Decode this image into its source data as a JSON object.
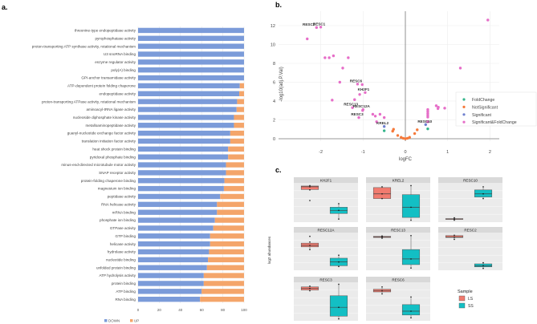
{
  "panel_labels": {
    "a": "a.",
    "b": "b.",
    "c": "c."
  },
  "colors": {
    "down": "#7b9bd9",
    "up": "#f4a56a",
    "fold_change": "#34b58b",
    "not_significant": "#f5793a",
    "significant": "#6f80cf",
    "sig_fold": "#e66ec8",
    "ls": "#f17b6f",
    "ss": "#13bfc4",
    "panel_bg": "#ebebeb",
    "strip_bg": "#d9d9d9"
  },
  "chart_data": [
    {
      "type": "bar",
      "stacked": true,
      "orientation": "horizontal",
      "categories": [
        "threonine-type endopeptidase activity",
        "pyrophosphatase activity",
        "proton-transporting ATP synthase activity, rotational mechanism",
        "U3 snoRNA binding",
        "enzyme regulator activity",
        "poly(A) binding",
        "GPI-anchor transamidase activity",
        "ATP-dependent protein folding chaperone",
        "endopeptidase activity",
        "proton-transporting ATPase activity, rotational mechanism",
        "aminoacyl-tRNA ligase activity",
        "nucleoside diphosphate kinase activity",
        "metalloaminopeptidase activity",
        "guanyl-nucleotide exchange factor activity",
        "translation initiation factor activity",
        "heat shock protein binding",
        "pyridoxal phosphate binding",
        "minus-end-directed microtubule motor activity",
        "SNAP receptor activity",
        "protein-folding chaperone binding",
        "magnesium ion binding",
        "peptidase activity",
        "RNA helicase activity",
        "mRNA binding",
        "phosphate ion binding",
        "GTPase activity",
        "GTP binding",
        "helicase activity",
        "hydrolase activity",
        "nucleotide binding",
        "unfolded protein binding",
        "ATP hydrolysis activity",
        "protein binding",
        "ATP binding",
        "RNA binding"
      ],
      "series": [
        {
          "name": "DOWN",
          "values": [
            100,
            100,
            100,
            100,
            100,
            100,
            100,
            96,
            95.5,
            93.5,
            93,
            90.5,
            90.5,
            87,
            87,
            85,
            85,
            83,
            83,
            81.5,
            81,
            77.5,
            74.5,
            74.5,
            72.5,
            71,
            68,
            68,
            67,
            66,
            65,
            62,
            62,
            60,
            58.5
          ]
        },
        {
          "name": "UP",
          "values": [
            0,
            0,
            0,
            0,
            0,
            0,
            0,
            4,
            4.5,
            6.5,
            7,
            9.5,
            9.5,
            13,
            13,
            15,
            15,
            17,
            17,
            18.5,
            19,
            22.5,
            25.5,
            25.5,
            27.5,
            29,
            32,
            32,
            33,
            34,
            35,
            38,
            38,
            40,
            41.5
          ]
        }
      ],
      "xlim": [
        0,
        100
      ],
      "xticks": [
        "0",
        "20",
        "40",
        "60",
        "80",
        "100"
      ],
      "legend": "bottom",
      "grid": true
    },
    {
      "type": "scatter",
      "xlabel": "logFC",
      "ylabel": "-log10(adj.P.Val)",
      "xlim": [
        -2.5,
        2.2
      ],
      "ylim": [
        -0.2,
        13.2
      ],
      "xticks": [
        "-2",
        "-1",
        "0",
        "1",
        "2"
      ],
      "yticks": [
        "0",
        "2",
        "4",
        "6",
        "8",
        "10",
        "12"
      ],
      "legend": "right",
      "grid": true,
      "groups": [
        "FoldChange",
        "NotSignificant",
        "Significant",
        "Significant&FoldChange"
      ],
      "points": [
        {
          "x": -2.1,
          "y": 11.8,
          "g": "Significant&FoldChange",
          "label": "RESC2"
        },
        {
          "x": -2.0,
          "y": 11.85,
          "g": "Significant&FoldChange",
          "label": "RESC1"
        },
        {
          "x": -2.32,
          "y": 10.6,
          "g": "Significant&FoldChange"
        },
        {
          "x": -1.9,
          "y": 8.6,
          "g": "Significant&FoldChange"
        },
        {
          "x": -1.8,
          "y": 8.6,
          "g": "Significant&FoldChange"
        },
        {
          "x": -1.7,
          "y": 8.8,
          "g": "Significant&FoldChange"
        },
        {
          "x": -1.35,
          "y": 8.6,
          "g": "Significant&FoldChange"
        },
        {
          "x": -1.48,
          "y": 7.5,
          "g": "Significant&FoldChange"
        },
        {
          "x": -1.55,
          "y": 6.0,
          "g": "Significant&FoldChange"
        },
        {
          "x": -1.13,
          "y": 5.8,
          "g": "Significant&FoldChange",
          "label": "RESC6"
        },
        {
          "x": -1.02,
          "y": 5.75,
          "g": "Significant&FoldChange"
        },
        {
          "x": -0.95,
          "y": 4.9,
          "g": "Significant&FoldChange",
          "label": "KH2F1"
        },
        {
          "x": -1.08,
          "y": 4.7,
          "g": "Significant&FoldChange"
        },
        {
          "x": -1.73,
          "y": 4.1,
          "g": "Significant&FoldChange"
        },
        {
          "x": -1.2,
          "y": 4.15,
          "g": "Significant&FoldChange"
        },
        {
          "x": -1.25,
          "y": 3.3,
          "g": "Significant&FoldChange",
          "label": "RESC13"
        },
        {
          "x": -1.0,
          "y": 3.1,
          "g": "Significant&FoldChange",
          "label": "RESC12A"
        },
        {
          "x": -1.01,
          "y": 3.0,
          "g": "Significant&FoldChange"
        },
        {
          "x": -0.77,
          "y": 2.6,
          "g": "Significant&FoldChange"
        },
        {
          "x": -0.6,
          "y": 2.6,
          "g": "Significant&FoldChange"
        },
        {
          "x": -0.71,
          "y": 2.4,
          "g": "Significant&FoldChange"
        },
        {
          "x": -1.1,
          "y": 2.25,
          "g": "Significant&FoldChange",
          "label": "RESC3"
        },
        {
          "x": -0.5,
          "y": 2.25,
          "g": "Significant&FoldChange"
        },
        {
          "x": -0.68,
          "y": 1.8,
          "g": "Significant&FoldChange"
        },
        {
          "x": 0.53,
          "y": 3.1,
          "g": "Significant&FoldChange"
        },
        {
          "x": 0.53,
          "y": 2.9,
          "g": "Significant&FoldChange"
        },
        {
          "x": 0.53,
          "y": 2.7,
          "g": "Significant&FoldChange"
        },
        {
          "x": 0.53,
          "y": 2.5,
          "g": "Significant&FoldChange"
        },
        {
          "x": 0.53,
          "y": 2.3,
          "g": "Significant&FoldChange"
        },
        {
          "x": 0.53,
          "y": 1.8,
          "g": "Significant&FoldChange"
        },
        {
          "x": 0.73,
          "y": 3.5,
          "g": "Significant&FoldChange"
        },
        {
          "x": 0.78,
          "y": 3.35,
          "g": "Significant&FoldChange"
        },
        {
          "x": 0.77,
          "y": 3.2,
          "g": "Significant&FoldChange"
        },
        {
          "x": 0.93,
          "y": 3.25,
          "g": "Significant&FoldChange"
        },
        {
          "x": 1.3,
          "y": 7.5,
          "g": "Significant&FoldChange"
        },
        {
          "x": 1.95,
          "y": 12.6,
          "g": "Significant&FoldChange"
        },
        {
          "x": -0.5,
          "y": 1.3,
          "g": "Significant",
          "label": "KREL2"
        },
        {
          "x": 0.48,
          "y": 1.5,
          "g": "Significant",
          "label": "RESC10"
        },
        {
          "x": -0.5,
          "y": 0.85,
          "g": "FoldChange"
        },
        {
          "x": 0.53,
          "y": 1.05,
          "g": "FoldChange"
        },
        {
          "x": -0.28,
          "y": 1.0,
          "g": "NotSignificant"
        },
        {
          "x": -0.3,
          "y": 0.8,
          "g": "NotSignificant"
        },
        {
          "x": -0.18,
          "y": 0.35,
          "g": "NotSignificant"
        },
        {
          "x": -0.1,
          "y": 0.15,
          "g": "NotSignificant"
        },
        {
          "x": -0.05,
          "y": 0.05,
          "g": "NotSignificant"
        },
        {
          "x": 0.0,
          "y": 0.0,
          "g": "NotSignificant"
        },
        {
          "x": 0.05,
          "y": 0.05,
          "g": "NotSignificant"
        },
        {
          "x": 0.1,
          "y": 0.15,
          "g": "NotSignificant"
        },
        {
          "x": 0.22,
          "y": 0.55,
          "g": "NotSignificant"
        },
        {
          "x": 0.28,
          "y": 0.95,
          "g": "NotSignificant"
        }
      ]
    },
    {
      "type": "box",
      "ylabel": "log2 abundances",
      "legend_title": "Sample",
      "samples": [
        "LS",
        "SS"
      ],
      "ylim_relative": [
        0,
        1
      ],
      "panels": [
        {
          "title": "KH2F1",
          "LS": [
            0.82,
            0.83,
            0.9,
            0.92,
            0.93
          ],
          "SS": [
            0.08,
            0.22,
            0.3,
            0.38,
            0.47
          ],
          "LS_outliers": [
            0.55
          ]
        },
        {
          "title": "KREL2",
          "LS": [
            0.6,
            0.6,
            0.72,
            0.88,
            0.9
          ],
          "SS": [
            0.05,
            0.12,
            0.38,
            0.7,
            0.93
          ]
        },
        {
          "title": "RESC10",
          "LS": [
            0.05,
            0.07,
            0.08,
            0.09,
            0.11
          ],
          "SS": [
            0.6,
            0.64,
            0.72,
            0.82,
            0.9
          ]
        },
        {
          "title": "RESC12A",
          "LS": [
            0.55,
            0.62,
            0.66,
            0.72,
            0.75
          ],
          "SS": [
            0.1,
            0.12,
            0.22,
            0.32,
            0.4
          ],
          "LS_outliers": [
            0.9
          ]
        },
        {
          "title": "RESC13",
          "LS": [
            0.85,
            0.87,
            0.88,
            0.9,
            0.91
          ],
          "SS": [
            0.06,
            0.15,
            0.3,
            0.55,
            0.92
          ]
        },
        {
          "title": "RESC2",
          "LS": [
            0.82,
            0.87,
            0.88,
            0.92,
            0.93
          ],
          "SS": [
            0.05,
            0.09,
            0.12,
            0.17,
            0.2
          ]
        },
        {
          "title": "RESC3",
          "LS": [
            0.78,
            0.8,
            0.84,
            0.88,
            0.9
          ],
          "SS": [
            0.05,
            0.12,
            0.35,
            0.65,
            0.95
          ]
        },
        {
          "title": "RESC6",
          "LS": [
            0.7,
            0.75,
            0.78,
            0.82,
            0.88
          ],
          "SS": [
            0.08,
            0.15,
            0.25,
            0.42,
            0.62
          ]
        }
      ]
    }
  ]
}
